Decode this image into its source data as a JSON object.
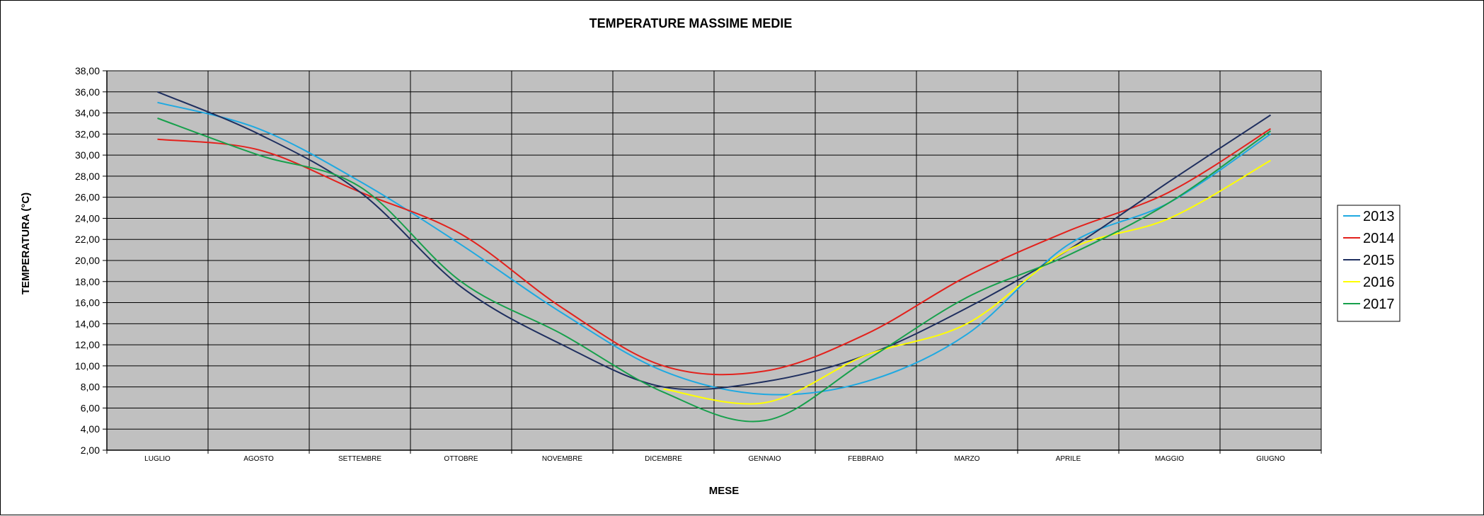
{
  "chart_data": {
    "type": "line",
    "title": "TEMPERATURE MASSIME MEDIE",
    "xlabel": "MESE",
    "ylabel": "TEMPERATURA (°C)",
    "categories": [
      "LUGLIO",
      "AGOSTO",
      "SETTEMBRE",
      "OTTOBRE",
      "NOVEMBRE",
      "DICEMBRE",
      "GENNAIO",
      "FEBBRAIO",
      "MARZO",
      "APRILE",
      "MAGGIO",
      "GIUGNO"
    ],
    "ylim": [
      2,
      38
    ],
    "ytick_labels": [
      "2,00",
      "4,00",
      "6,00",
      "8,00",
      "10,00",
      "12,00",
      "14,00",
      "16,00",
      "18,00",
      "20,00",
      "22,00",
      "24,00",
      "26,00",
      "28,00",
      "30,00",
      "32,00",
      "34,00",
      "36,00",
      "38,00"
    ],
    "grid": true,
    "plot_background": "#c0c0c0",
    "legend_position": "right",
    "series": [
      {
        "name": "2013",
        "color": "#1fa9e1",
        "values": [
          35.0,
          32.5,
          27.5,
          21.5,
          15.0,
          9.5,
          7.3,
          8.5,
          13.0,
          21.5,
          25.5,
          32.0
        ]
      },
      {
        "name": "2014",
        "color": "#e3211c",
        "values": [
          31.5,
          30.5,
          26.5,
          22.5,
          15.5,
          10.0,
          9.5,
          13.0,
          18.5,
          22.8,
          26.5,
          32.5
        ]
      },
      {
        "name": "2015",
        "color": "#1f2f5f",
        "values": [
          36.0,
          32.0,
          26.5,
          17.5,
          12.0,
          8.0,
          8.5,
          11.0,
          15.5,
          21.0,
          27.5,
          33.8
        ]
      },
      {
        "name": "2016",
        "color": "#ffff00",
        "values": [
          null,
          null,
          null,
          null,
          null,
          7.8,
          6.5,
          11.0,
          14.0,
          21.0,
          24.0,
          29.5
        ]
      },
      {
        "name": "2017",
        "color": "#17a04c",
        "values": [
          33.5,
          30.0,
          27.0,
          18.0,
          13.0,
          7.5,
          4.8,
          10.5,
          16.5,
          20.5,
          25.5,
          32.3
        ]
      }
    ]
  }
}
